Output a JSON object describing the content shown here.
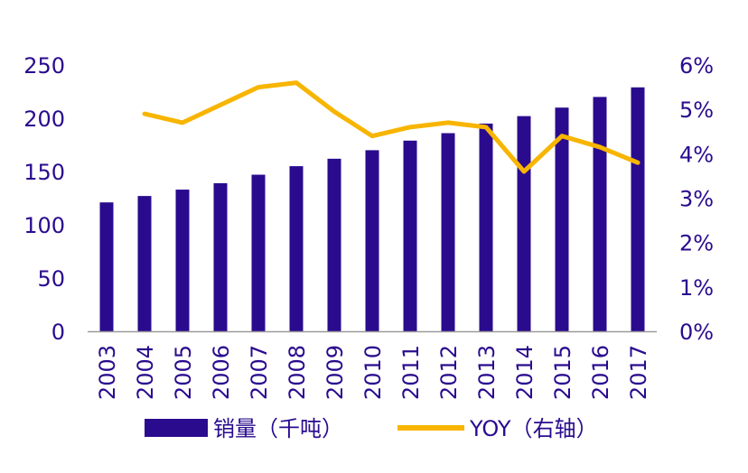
{
  "colors": {
    "bar": "#2a0b8e",
    "line": "#f7b500",
    "text": "#2a0b8e",
    "axis": "#9a9a9a"
  },
  "chart_data": {
    "type": "bar",
    "categories": [
      "2003",
      "2004",
      "2005",
      "2006",
      "2007",
      "2008",
      "2009",
      "2010",
      "2011",
      "2012",
      "2013",
      "2014",
      "2015",
      "2016",
      "2017"
    ],
    "series": [
      {
        "name": "销量（千吨）",
        "type": "bar",
        "axis": "left",
        "values": [
          121,
          127,
          133,
          139,
          147,
          155,
          162,
          170,
          179,
          186,
          195,
          202,
          210,
          220,
          229
        ]
      },
      {
        "name": "YOY（右轴）",
        "type": "line",
        "axis": "right",
        "color": "#f7b500",
        "values": [
          null,
          4.9,
          4.7,
          5.1,
          5.5,
          5.6,
          4.95,
          4.4,
          4.6,
          4.7,
          4.6,
          3.6,
          4.4,
          4.15,
          3.8
        ]
      }
    ],
    "ylim": [
      0,
      250
    ],
    "y_ticks": [
      "0",
      "50",
      "100",
      "150",
      "200",
      "250"
    ],
    "y2lim": [
      0,
      6
    ],
    "y2_ticks": [
      "0%",
      "1%",
      "2%",
      "3%",
      "4%",
      "5%",
      "6%"
    ],
    "legend": {
      "position": "bottom",
      "items": [
        "销量（千吨）",
        "YOY（右轴）"
      ]
    },
    "grid": false
  }
}
